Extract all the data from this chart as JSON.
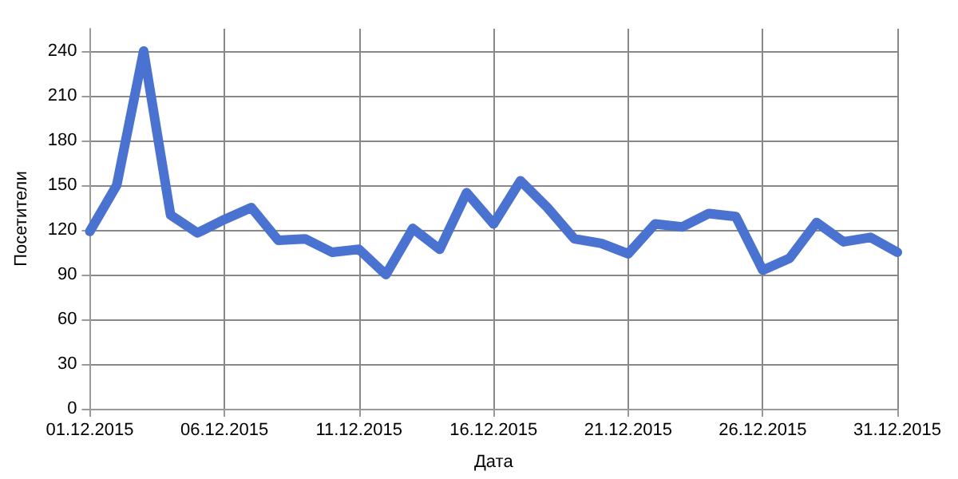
{
  "chart_data": {
    "type": "line",
    "xlabel": "Дата",
    "ylabel": "Посетители",
    "x": [
      "2015-12-01",
      "2015-12-02",
      "2015-12-03",
      "2015-12-04",
      "2015-12-05",
      "2015-12-06",
      "2015-12-07",
      "2015-12-08",
      "2015-12-09",
      "2015-12-10",
      "2015-12-11",
      "2015-12-12",
      "2015-12-13",
      "2015-12-14",
      "2015-12-15",
      "2015-12-16",
      "2015-12-17",
      "2015-12-18",
      "2015-12-19",
      "2015-12-20",
      "2015-12-21",
      "2015-12-22",
      "2015-12-23",
      "2015-12-24",
      "2015-12-25",
      "2015-12-26",
      "2015-12-27",
      "2015-12-28",
      "2015-12-29",
      "2015-12-30",
      "2015-12-31"
    ],
    "series": [
      {
        "color": "#4a72d0",
        "values": [
          119,
          150,
          240,
          130,
          118,
          127,
          135,
          113,
          114,
          105,
          107,
          90,
          121,
          107,
          145,
          124,
          153,
          135,
          114,
          111,
          104,
          124,
          122,
          131,
          129,
          93,
          101,
          125,
          112,
          115,
          105
        ]
      }
    ],
    "xlim": [
      "2015-12-01",
      "2015-12-31"
    ],
    "xticks": [
      {
        "value": "2015-12-01",
        "label": "01.12.2015"
      },
      {
        "value": "2015-12-06",
        "label": "06.12.2015"
      },
      {
        "value": "2015-12-11",
        "label": "11.12.2015"
      },
      {
        "value": "2015-12-16",
        "label": "16.12.2015"
      },
      {
        "value": "2015-12-21",
        "label": "21.12.2015"
      },
      {
        "value": "2015-12-26",
        "label": "26.12.2015"
      },
      {
        "value": "2015-12-31",
        "label": "31.12.2015"
      }
    ],
    "ylim": [
      0,
      255
    ],
    "yticks": [
      0,
      30,
      60,
      90,
      120,
      150,
      180,
      210,
      240
    ],
    "grid": true,
    "marker": "none",
    "line_style": "solid"
  }
}
